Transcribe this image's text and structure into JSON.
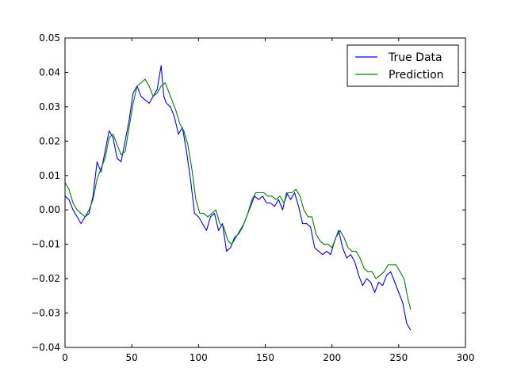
{
  "chart_data": {
    "type": "line",
    "title": "",
    "xlabel": "",
    "ylabel": "",
    "xlim": [
      0,
      300
    ],
    "ylim": [
      -0.04,
      0.05
    ],
    "grid": false,
    "legend_position": "top-right",
    "x_ticks": [
      0,
      50,
      100,
      150,
      200,
      250,
      300
    ],
    "x_tick_labels": [
      "0",
      "50",
      "100",
      "150",
      "200",
      "250",
      "300"
    ],
    "y_ticks": [
      -0.04,
      -0.03,
      -0.02,
      -0.01,
      0.0,
      0.01,
      0.02,
      0.03,
      0.04,
      0.05
    ],
    "y_tick_labels": [
      "−0.04",
      "−0.03",
      "−0.02",
      "−0.01",
      "0.00",
      "0.01",
      "0.02",
      "0.03",
      "0.04",
      "0.05"
    ],
    "series": [
      {
        "name": "True Data",
        "color": "#0000ff",
        "x": [
          0,
          3,
          6,
          9,
          12,
          15,
          18,
          21,
          24,
          27,
          30,
          33,
          36,
          39,
          42,
          45,
          48,
          51,
          54,
          57,
          60,
          63,
          66,
          69,
          72,
          74,
          76,
          79,
          82,
          85,
          88,
          91,
          94,
          97,
          100,
          103,
          106,
          109,
          112,
          115,
          118,
          121,
          124,
          127,
          130,
          133,
          136,
          139,
          142,
          145,
          148,
          151,
          154,
          157,
          160,
          163,
          166,
          169,
          172,
          175,
          178,
          181,
          184,
          187,
          190,
          193,
          196,
          199,
          202,
          205,
          208,
          211,
          214,
          217,
          220,
          223,
          226,
          229,
          232,
          235,
          238,
          241,
          244,
          247,
          250,
          253,
          256,
          259
        ],
        "y": [
          0.004,
          0.003,
          0.0,
          -0.002,
          -0.004,
          -0.002,
          -0.001,
          0.004,
          0.014,
          0.011,
          0.017,
          0.023,
          0.021,
          0.015,
          0.014,
          0.02,
          0.026,
          0.034,
          0.036,
          0.033,
          0.032,
          0.031,
          0.033,
          0.035,
          0.042,
          0.033,
          0.031,
          0.03,
          0.027,
          0.022,
          0.024,
          0.017,
          0.009,
          -0.001,
          -0.002,
          -0.004,
          -0.006,
          -0.002,
          -0.001,
          -0.006,
          -0.004,
          -0.012,
          -0.011,
          -0.008,
          -0.007,
          -0.005,
          -0.002,
          0.001,
          0.004,
          0.003,
          0.004,
          0.002,
          0.002,
          0.001,
          0.003,
          0.0,
          0.005,
          0.003,
          0.005,
          0.001,
          -0.004,
          -0.004,
          -0.005,
          -0.011,
          -0.012,
          -0.013,
          -0.012,
          -0.013,
          -0.009,
          -0.006,
          -0.011,
          -0.014,
          -0.013,
          -0.015,
          -0.019,
          -0.022,
          -0.02,
          -0.021,
          -0.024,
          -0.021,
          -0.022,
          -0.019,
          -0.018,
          -0.021,
          -0.024,
          -0.027,
          -0.033,
          -0.035
        ]
      },
      {
        "name": "Prediction",
        "color": "#008000",
        "x": [
          0,
          3,
          6,
          9,
          12,
          15,
          18,
          21,
          24,
          27,
          30,
          33,
          36,
          39,
          42,
          45,
          48,
          51,
          54,
          57,
          60,
          63,
          66,
          69,
          72,
          75,
          77,
          80,
          83,
          86,
          89,
          92,
          95,
          98,
          101,
          104,
          107,
          110,
          113,
          116,
          119,
          122,
          125,
          128,
          131,
          134,
          137,
          140,
          143,
          146,
          149,
          152,
          155,
          158,
          161,
          164,
          167,
          170,
          173,
          176,
          179,
          182,
          185,
          188,
          191,
          194,
          197,
          200,
          203,
          206,
          209,
          212,
          215,
          218,
          221,
          224,
          227,
          230,
          233,
          236,
          239,
          242,
          245,
          248,
          251,
          254,
          257,
          259
        ],
        "y": [
          0.008,
          0.006,
          0.002,
          0.0,
          -0.001,
          -0.002,
          0.0,
          0.003,
          0.009,
          0.012,
          0.015,
          0.021,
          0.022,
          0.019,
          0.016,
          0.017,
          0.024,
          0.031,
          0.036,
          0.037,
          0.038,
          0.036,
          0.033,
          0.034,
          0.036,
          0.037,
          0.035,
          0.032,
          0.029,
          0.025,
          0.023,
          0.019,
          0.012,
          0.003,
          -0.001,
          -0.001,
          -0.002,
          -0.001,
          0.0,
          -0.004,
          -0.005,
          -0.009,
          -0.01,
          -0.008,
          -0.006,
          -0.004,
          -0.001,
          0.003,
          0.005,
          0.005,
          0.005,
          0.004,
          0.004,
          0.003,
          0.004,
          0.002,
          0.005,
          0.005,
          0.006,
          0.004,
          0.0,
          -0.002,
          -0.002,
          -0.007,
          -0.009,
          -0.01,
          -0.01,
          -0.011,
          -0.008,
          -0.006,
          -0.008,
          -0.011,
          -0.012,
          -0.012,
          -0.014,
          -0.017,
          -0.018,
          -0.018,
          -0.02,
          -0.019,
          -0.018,
          -0.016,
          -0.016,
          -0.016,
          -0.018,
          -0.02,
          -0.026,
          -0.029
        ]
      }
    ]
  }
}
